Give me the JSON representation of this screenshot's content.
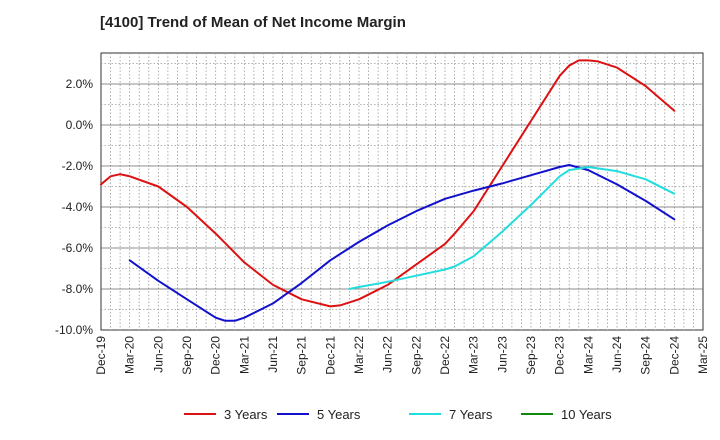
{
  "chart_data": {
    "type": "line",
    "title": "[4100]  Trend of Mean of Net Income Margin",
    "xlabel": "",
    "ylabel": "",
    "x_tick_labels": [
      "Dec-19",
      "Mar-20",
      "Jun-20",
      "Sep-20",
      "Dec-20",
      "Mar-21",
      "Jun-21",
      "Sep-21",
      "Dec-21",
      "Mar-22",
      "Jun-22",
      "Sep-22",
      "Dec-22",
      "Mar-23",
      "Jun-23",
      "Sep-23",
      "Dec-23",
      "Mar-24",
      "Jun-24",
      "Sep-24",
      "Dec-24",
      "Mar-25"
    ],
    "y_tick_labels": [
      "2.0%",
      "0.0%",
      "-2.0%",
      "-4.0%",
      "-6.0%",
      "-8.0%",
      "-10.0%"
    ],
    "y_tick_values": [
      2,
      0,
      -2,
      -4,
      -6,
      -8,
      -10
    ],
    "ylim": [
      -10,
      3.5
    ],
    "grid": true,
    "legend_position": "bottom",
    "series": [
      {
        "name": "3 Years",
        "color": "#dd1111",
        "x": [
          "2019-12",
          "2020-01",
          "2020-02",
          "2020-03",
          "2020-06",
          "2020-09",
          "2020-12",
          "2021-03",
          "2021-06",
          "2021-09",
          "2021-12",
          "2022-01",
          "2022-03",
          "2022-06",
          "2022-09",
          "2022-12",
          "2023-01",
          "2023-03",
          "2023-06",
          "2023-09",
          "2023-12",
          "2024-01",
          "2024-02",
          "2024-03",
          "2024-04",
          "2024-06",
          "2024-09",
          "2024-12"
        ],
        "values": [
          -2.9,
          -2.5,
          -2.4,
          -2.5,
          -3.0,
          -4.0,
          -5.3,
          -6.7,
          -7.8,
          -8.5,
          -8.85,
          -8.8,
          -8.5,
          -7.8,
          -6.8,
          -5.8,
          -5.3,
          -4.2,
          -2.0,
          0.2,
          2.4,
          2.9,
          3.15,
          3.15,
          3.1,
          2.8,
          1.9,
          0.7
        ]
      },
      {
        "name": "5 Years",
        "color": "#1111cc",
        "x": [
          "2020-03",
          "2020-06",
          "2020-09",
          "2020-12",
          "2021-01",
          "2021-02",
          "2021-03",
          "2021-06",
          "2021-09",
          "2021-12",
          "2022-03",
          "2022-06",
          "2022-09",
          "2022-12",
          "2023-03",
          "2023-06",
          "2023-09",
          "2023-12",
          "2024-01",
          "2024-03",
          "2024-06",
          "2024-09",
          "2024-12"
        ],
        "values": [
          -6.6,
          -7.6,
          -8.5,
          -9.4,
          -9.55,
          -9.55,
          -9.4,
          -8.7,
          -7.7,
          -6.6,
          -5.7,
          -4.9,
          -4.2,
          -3.6,
          -3.2,
          -2.85,
          -2.45,
          -2.05,
          -1.95,
          -2.2,
          -2.9,
          -3.7,
          -4.6
        ]
      },
      {
        "name": "7 Years",
        "color": "#22dddd",
        "x": [
          "2022-02",
          "2022-03",
          "2022-06",
          "2022-09",
          "2022-12",
          "2023-01",
          "2023-03",
          "2023-06",
          "2023-09",
          "2023-12",
          "2024-01",
          "2024-03",
          "2024-06",
          "2024-09",
          "2024-12"
        ],
        "values": [
          -8.0,
          -7.9,
          -7.65,
          -7.35,
          -7.05,
          -6.9,
          -6.4,
          -5.2,
          -3.9,
          -2.5,
          -2.2,
          -2.05,
          -2.25,
          -2.65,
          -3.35
        ]
      },
      {
        "name": "10 Years",
        "color": "#118811",
        "x": [],
        "values": []
      }
    ]
  }
}
